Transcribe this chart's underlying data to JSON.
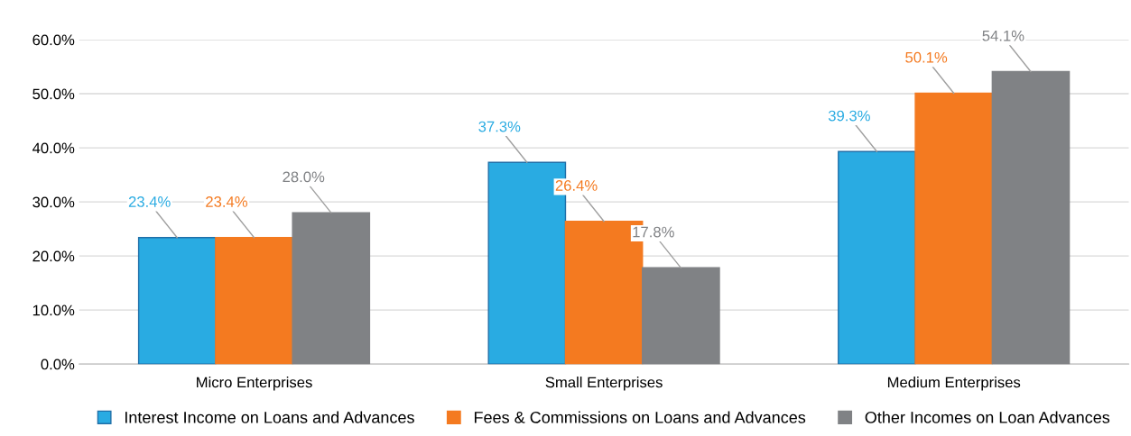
{
  "chart_data": {
    "type": "bar",
    "categories": [
      "Micro Enterprises",
      "Small Enterprises",
      "Medium Enterprises"
    ],
    "series": [
      {
        "name": "Interest Income on Loans and Advances",
        "color": "#29abe2",
        "values": [
          23.4,
          37.3,
          39.3
        ],
        "value_labels": [
          "23.4%",
          "37.3%",
          "39.3%"
        ]
      },
      {
        "name": "Fees & Commissions on Loans and Advances",
        "color": "#f47a20",
        "values": [
          23.4,
          26.4,
          50.1
        ],
        "value_labels": [
          "23.4%",
          "26.4%",
          "50.1%"
        ]
      },
      {
        "name": "Other Incomes on Loan Advances",
        "color": "#808285",
        "values": [
          28.0,
          17.8,
          54.1
        ],
        "value_labels": [
          "28.0%",
          "17.8%",
          "54.1%"
        ]
      }
    ],
    "ylim": [
      0,
      60
    ],
    "yticks": [
      {
        "value": 0,
        "label": "0.0%"
      },
      {
        "value": 10,
        "label": "10.0%"
      },
      {
        "value": 20,
        "label": "20.0%"
      },
      {
        "value": 30,
        "label": "30.0%"
      },
      {
        "value": 40,
        "label": "40.0%"
      },
      {
        "value": 50,
        "label": "50.0%"
      },
      {
        "value": 60,
        "label": "60.0%"
      }
    ],
    "grid": "y",
    "legend": "bottom"
  }
}
